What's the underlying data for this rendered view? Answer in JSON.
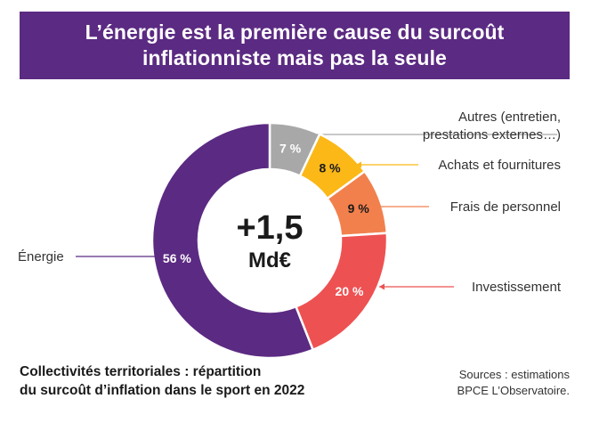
{
  "header": {
    "title_line1": "L’énergie est la première cause du surcoût",
    "title_line2": "inflationniste mais pas la seule"
  },
  "chart_data": {
    "type": "pie",
    "title": "L’énergie est la première cause du surcoût inflationniste mais pas la seule",
    "center_value": "+1,5",
    "center_unit": "Md€",
    "slices": [
      {
        "label": "Autres (entretien, prestations externes…)",
        "label_lines": [
          "Autres (entretien,",
          "prestations externes…)"
        ],
        "value": 7,
        "display": "7 %",
        "color": "#a8a8a8",
        "label_color": "#ffffff"
      },
      {
        "label": "Achats et fournitures",
        "label_lines": [
          "Achats et fournitures"
        ],
        "value": 8,
        "display": "8 %",
        "color": "#fbb817",
        "label_color": "#1a1a1a"
      },
      {
        "label": "Frais de personnel",
        "label_lines": [
          "Frais de personnel"
        ],
        "value": 9,
        "display": "9 %",
        "color": "#f2804d",
        "label_color": "#1a1a1a"
      },
      {
        "label": "Investissement",
        "label_lines": [
          "Investissement"
        ],
        "value": 20,
        "display": "20 %",
        "color": "#ee5152",
        "label_color": "#ffffff"
      },
      {
        "label": "Énergie",
        "label_lines": [
          "Énergie"
        ],
        "value": 56,
        "display": "56 %",
        "color": "#5b2a82",
        "label_color": "#ffffff"
      }
    ]
  },
  "footer": {
    "caption_line1": "Collectivités territoriales : répartition",
    "caption_line2": "du surcoût d’inflation dans le sport en 2022",
    "source_line1": "Sources : estimations",
    "source_line2": "BPCE L’Observatoire."
  }
}
